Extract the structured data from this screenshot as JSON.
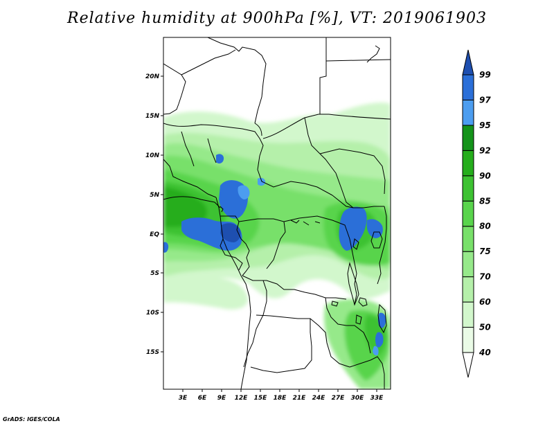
{
  "title": "Relative humidity at 900hPa [%], VT: 2019061903",
  "credit": "GrADS: IGES/COLA",
  "map": {
    "lat_labels": [
      "20N",
      "15N",
      "10N",
      "5N",
      "EQ",
      "5S",
      "10S",
      "15S"
    ],
    "lon_labels": [
      "3E",
      "6E",
      "9E",
      "12E",
      "15E",
      "18E",
      "21E",
      "24E",
      "27E",
      "30E",
      "33E"
    ],
    "lon_range": [
      "0E",
      "35E"
    ],
    "lat_range": [
      "19S",
      "24N"
    ]
  },
  "colorbar": {
    "levels": [
      "40",
      "50",
      "60",
      "70",
      "75",
      "80",
      "85",
      "90",
      "92",
      "95",
      "97",
      "99"
    ],
    "colors": [
      "#ffffff",
      "#eafbe6",
      "#d2f7cc",
      "#b5f0aa",
      "#96e98a",
      "#78e06a",
      "#59d44c",
      "#3dc232",
      "#25ad1c",
      "#14931a",
      "#4c9df0",
      "#2b6fd8",
      "#1e4fb0"
    ]
  }
}
